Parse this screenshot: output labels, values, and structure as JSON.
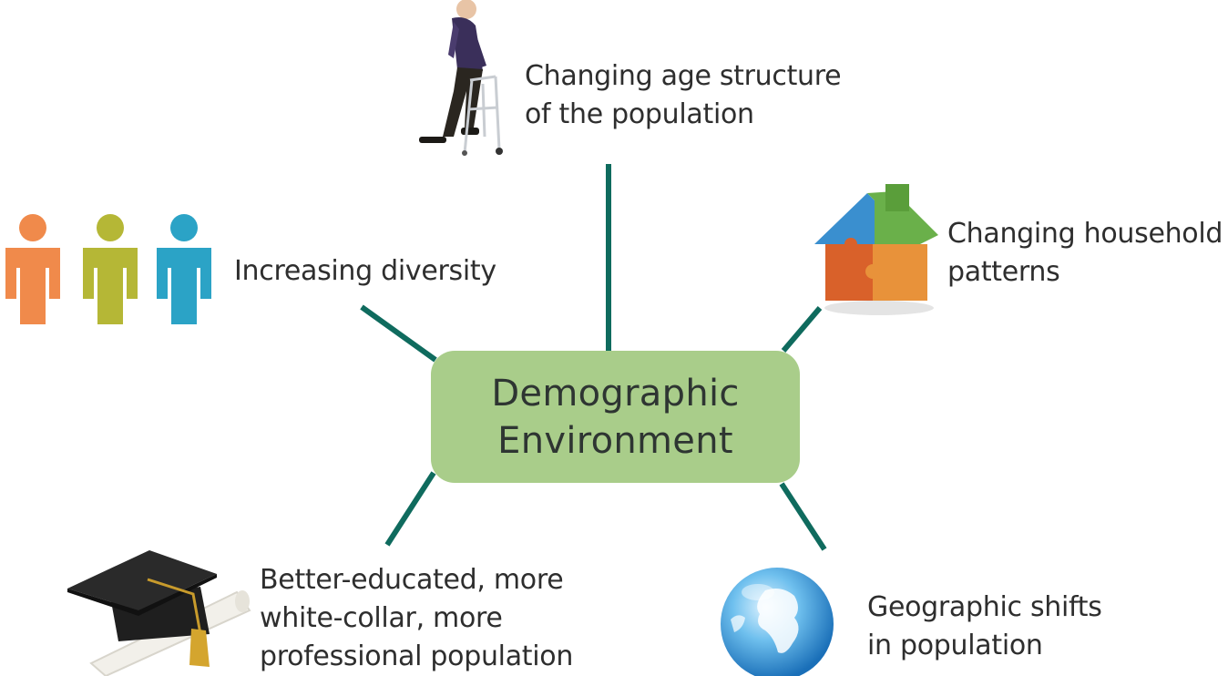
{
  "center": {
    "line1": "Demographic",
    "line2": "Environment"
  },
  "factors": {
    "age": {
      "line1": "Changing age structure",
      "line2": "of the population",
      "icon": "elderly-walker-icon"
    },
    "household": {
      "line1": "Changing household",
      "line2": "patterns",
      "icon": "puzzle-house-icon"
    },
    "diversity": {
      "line1": "Increasing diversity",
      "icon": "people-figures-icon"
    },
    "education": {
      "line1": "Better-educated, more",
      "line2": "white-collar, more",
      "line3": "professional population",
      "icon": "graduation-cap-icon"
    },
    "geography": {
      "line1": "Geographic shifts",
      "line2": "in population",
      "icon": "globe-icon"
    }
  },
  "colors": {
    "center_box": "#a9cd8a",
    "connector": "#0f6b5e",
    "person_orange": "#f08a4b",
    "person_olive": "#b5b736",
    "person_teal": "#2ba3c6"
  }
}
